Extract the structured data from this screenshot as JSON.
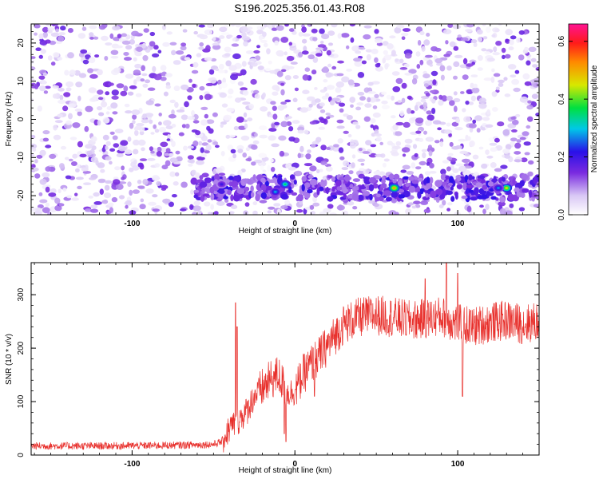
{
  "title": "S196.2025.356.01.43.R08",
  "chart_data": [
    {
      "type": "heatmap",
      "xlabel": "Height of straight line (km)",
      "ylabel": "Frequency (Hz)",
      "xlim": [
        -162,
        150
      ],
      "ylim": [
        -25,
        25
      ],
      "xticks": [
        -100,
        0,
        100
      ],
      "yticks": [
        -20,
        -10,
        0,
        10,
        20
      ],
      "colorbar": {
        "label": "Normalized spectral amplitude",
        "range": [
          0.0,
          0.66
        ],
        "ticks": [
          0.0,
          0.2,
          0.4,
          0.6
        ],
        "tick_labels": [
          "0.0",
          "0.2",
          "0.4",
          "0.6"
        ]
      },
      "features": {
        "signal_band_frequency_hz": -18,
        "signal_band_x_range_km": [
          -62,
          150
        ],
        "peaks": [
          {
            "x": -6,
            "y": -17,
            "value": 0.35
          },
          {
            "x": -12,
            "y": -19,
            "value": 0.28
          },
          {
            "x": 61,
            "y": -18,
            "value": 0.5
          },
          {
            "x": 130,
            "y": -18,
            "value": 0.46
          },
          {
            "x": 125,
            "y": -18,
            "value": 0.27
          },
          {
            "x": -45,
            "y": -17,
            "value": 0.2
          }
        ]
      }
    },
    {
      "type": "line",
      "xlabel": "Height of straight line (km)",
      "ylabel": "SNR (10 * v/v)",
      "xlim": [
        -162,
        150
      ],
      "ylim": [
        0,
        360
      ],
      "xticks": [
        -100,
        0,
        100
      ],
      "yticks": [
        0,
        100,
        200,
        300
      ],
      "series": [
        {
          "name": "SNR",
          "color": "#e8302c",
          "envelope_x": [
            -162,
            -120,
            -80,
            -50,
            -45,
            -40,
            -35,
            -30,
            -25,
            -20,
            -15,
            -10,
            -5,
            0,
            5,
            10,
            15,
            20,
            25,
            30,
            40,
            50,
            60,
            70,
            80,
            90,
            100,
            110,
            120,
            130,
            140,
            150
          ],
          "envelope_y": [
            17,
            17,
            18,
            20,
            25,
            50,
            65,
            80,
            110,
            125,
            140,
            150,
            115,
            120,
            150,
            170,
            185,
            205,
            225,
            245,
            258,
            262,
            258,
            252,
            255,
            260,
            245,
            240,
            248,
            252,
            245,
            250
          ],
          "spikes": [
            {
              "x": -36.5,
              "y": 285
            },
            {
              "x": -35.5,
              "y": 240
            },
            {
              "x": -6.5,
              "y": 40
            },
            {
              "x": -5.5,
              "y": 25
            },
            {
              "x": 12,
              "y": 110
            },
            {
              "x": 93,
              "y": 360
            },
            {
              "x": 100,
              "y": 340
            },
            {
              "x": 103,
              "y": 110
            },
            {
              "x": 80,
              "y": 330
            }
          ]
        }
      ]
    }
  ]
}
